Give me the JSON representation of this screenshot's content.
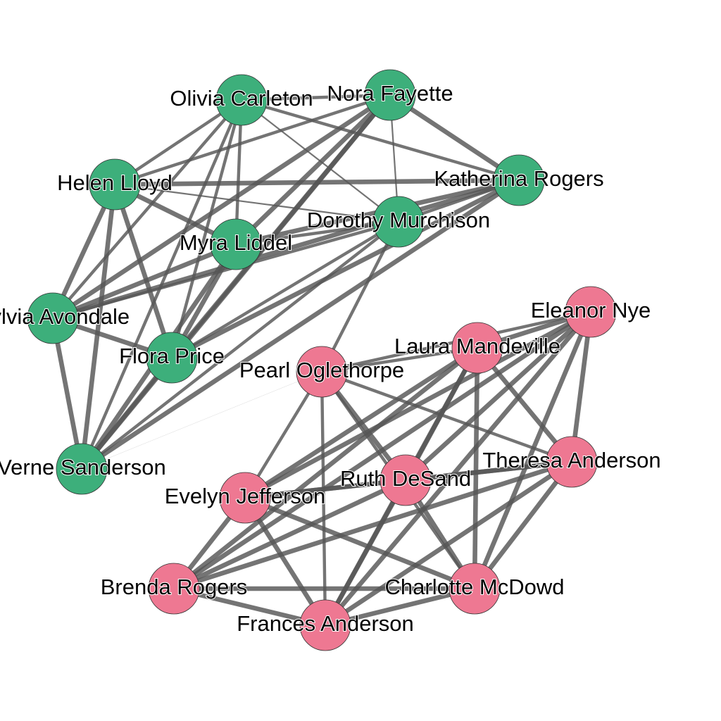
{
  "graph": {
    "type": "network",
    "edge_color": "#555555",
    "groups": {
      "green": "#3daf7b",
      "pink": "#ee7892"
    },
    "nodes": [
      {
        "id": "olivia_carleton",
        "label": "Olivia Carleton",
        "group": "green"
      },
      {
        "id": "nora_fayette",
        "label": "Nora Fayette",
        "group": "green"
      },
      {
        "id": "katherina_rogers",
        "label": "Katherina Rogers",
        "group": "green"
      },
      {
        "id": "helen_lloyd",
        "label": "Helen Lloyd",
        "group": "green"
      },
      {
        "id": "dorothy_murchison",
        "label": "Dorothy Murchison",
        "group": "green"
      },
      {
        "id": "myra_liddel",
        "label": "Myra Liddel",
        "group": "green"
      },
      {
        "id": "sylvia_avondale",
        "label": "Sylvia Avondale",
        "group": "green"
      },
      {
        "id": "flora_price",
        "label": "Flora Price",
        "group": "green"
      },
      {
        "id": "verne_sanderson",
        "label": "Verne Sanderson",
        "group": "green"
      },
      {
        "id": "eleanor_nye",
        "label": "Eleanor Nye",
        "group": "pink"
      },
      {
        "id": "laura_mandeville",
        "label": "Laura Mandeville",
        "group": "pink"
      },
      {
        "id": "pearl_oglethorpe",
        "label": "Pearl Oglethorpe",
        "group": "pink"
      },
      {
        "id": "theresa_anderson",
        "label": "Theresa Anderson",
        "group": "pink"
      },
      {
        "id": "ruth_desand",
        "label": "Ruth DeSand",
        "group": "pink"
      },
      {
        "id": "evelyn_jefferson",
        "label": "Evelyn Jefferson",
        "group": "pink"
      },
      {
        "id": "brenda_rogers",
        "label": "Brenda Rogers",
        "group": "pink"
      },
      {
        "id": "charlotte_mcdowd",
        "label": "Charlotte McDowd",
        "group": "pink"
      },
      {
        "id": "frances_anderson",
        "label": "Frances Anderson",
        "group": "pink"
      }
    ],
    "edges": [
      {
        "source": "olivia_carleton",
        "target": "nora_fayette",
        "weight": 2
      },
      {
        "source": "olivia_carleton",
        "target": "katherina_rogers",
        "weight": 2
      },
      {
        "source": "olivia_carleton",
        "target": "dorothy_murchison",
        "weight": 1
      },
      {
        "source": "olivia_carleton",
        "target": "helen_lloyd",
        "weight": 2
      },
      {
        "source": "olivia_carleton",
        "target": "myra_liddel",
        "weight": 2
      },
      {
        "source": "olivia_carleton",
        "target": "sylvia_avondale",
        "weight": 2
      },
      {
        "source": "olivia_carleton",
        "target": "flora_price",
        "weight": 2
      },
      {
        "source": "olivia_carleton",
        "target": "verne_sanderson",
        "weight": 2
      },
      {
        "source": "nora_fayette",
        "target": "katherina_rogers",
        "weight": 3
      },
      {
        "source": "nora_fayette",
        "target": "dorothy_murchison",
        "weight": 1
      },
      {
        "source": "nora_fayette",
        "target": "helen_lloyd",
        "weight": 2
      },
      {
        "source": "nora_fayette",
        "target": "myra_liddel",
        "weight": 3
      },
      {
        "source": "nora_fayette",
        "target": "sylvia_avondale",
        "weight": 3
      },
      {
        "source": "nora_fayette",
        "target": "flora_price",
        "weight": 3
      },
      {
        "source": "nora_fayette",
        "target": "verne_sanderson",
        "weight": 3
      },
      {
        "source": "katherina_rogers",
        "target": "helen_lloyd",
        "weight": 3
      },
      {
        "source": "katherina_rogers",
        "target": "dorothy_murchison",
        "weight": 2
      },
      {
        "source": "katherina_rogers",
        "target": "myra_liddel",
        "weight": 3
      },
      {
        "source": "katherina_rogers",
        "target": "sylvia_avondale",
        "weight": 3
      },
      {
        "source": "katherina_rogers",
        "target": "flora_price",
        "weight": 3
      },
      {
        "source": "katherina_rogers",
        "target": "verne_sanderson",
        "weight": 3
      },
      {
        "source": "helen_lloyd",
        "target": "dorothy_murchison",
        "weight": 1
      },
      {
        "source": "helen_lloyd",
        "target": "myra_liddel",
        "weight": 3
      },
      {
        "source": "helen_lloyd",
        "target": "sylvia_avondale",
        "weight": 3
      },
      {
        "source": "helen_lloyd",
        "target": "flora_price",
        "weight": 3
      },
      {
        "source": "helen_lloyd",
        "target": "verne_sanderson",
        "weight": 3
      },
      {
        "source": "dorothy_murchison",
        "target": "myra_liddel",
        "weight": 2
      },
      {
        "source": "dorothy_murchison",
        "target": "sylvia_avondale",
        "weight": 2
      },
      {
        "source": "dorothy_murchison",
        "target": "flora_price",
        "weight": 2
      },
      {
        "source": "dorothy_murchison",
        "target": "verne_sanderson",
        "weight": 2
      },
      {
        "source": "dorothy_murchison",
        "target": "pearl_oglethorpe",
        "weight": 2
      },
      {
        "source": "myra_liddel",
        "target": "sylvia_avondale",
        "weight": 3
      },
      {
        "source": "myra_liddel",
        "target": "flora_price",
        "weight": 3
      },
      {
        "source": "myra_liddel",
        "target": "verne_sanderson",
        "weight": 3
      },
      {
        "source": "sylvia_avondale",
        "target": "flora_price",
        "weight": 3
      },
      {
        "source": "sylvia_avondale",
        "target": "verne_sanderson",
        "weight": 3
      },
      {
        "source": "flora_price",
        "target": "verne_sanderson",
        "weight": 3
      },
      {
        "source": "verne_sanderson",
        "target": "pearl_oglethorpe",
        "weight": 0.2
      },
      {
        "source": "eleanor_nye",
        "target": "laura_mandeville",
        "weight": 3
      },
      {
        "source": "eleanor_nye",
        "target": "pearl_oglethorpe",
        "weight": 2
      },
      {
        "source": "eleanor_nye",
        "target": "theresa_anderson",
        "weight": 3
      },
      {
        "source": "eleanor_nye",
        "target": "ruth_desand",
        "weight": 3
      },
      {
        "source": "eleanor_nye",
        "target": "evelyn_jefferson",
        "weight": 3
      },
      {
        "source": "eleanor_nye",
        "target": "brenda_rogers",
        "weight": 3
      },
      {
        "source": "eleanor_nye",
        "target": "frances_anderson",
        "weight": 3
      },
      {
        "source": "eleanor_nye",
        "target": "charlotte_mcdowd",
        "weight": 3
      },
      {
        "source": "laura_mandeville",
        "target": "pearl_oglethorpe",
        "weight": 2
      },
      {
        "source": "laura_mandeville",
        "target": "theresa_anderson",
        "weight": 3
      },
      {
        "source": "laura_mandeville",
        "target": "ruth_desand",
        "weight": 3
      },
      {
        "source": "laura_mandeville",
        "target": "evelyn_jefferson",
        "weight": 3
      },
      {
        "source": "laura_mandeville",
        "target": "brenda_rogers",
        "weight": 3
      },
      {
        "source": "laura_mandeville",
        "target": "frances_anderson",
        "weight": 3
      },
      {
        "source": "laura_mandeville",
        "target": "charlotte_mcdowd",
        "weight": 3
      },
      {
        "source": "pearl_oglethorpe",
        "target": "theresa_anderson",
        "weight": 2
      },
      {
        "source": "pearl_oglethorpe",
        "target": "ruth_desand",
        "weight": 3
      },
      {
        "source": "pearl_oglethorpe",
        "target": "evelyn_jefferson",
        "weight": 2
      },
      {
        "source": "pearl_oglethorpe",
        "target": "frances_anderson",
        "weight": 2
      },
      {
        "source": "pearl_oglethorpe",
        "target": "charlotte_mcdowd",
        "weight": 2
      },
      {
        "source": "theresa_anderson",
        "target": "ruth_desand",
        "weight": 3
      },
      {
        "source": "theresa_anderson",
        "target": "evelyn_jefferson",
        "weight": 3
      },
      {
        "source": "theresa_anderson",
        "target": "brenda_rogers",
        "weight": 3
      },
      {
        "source": "theresa_anderson",
        "target": "frances_anderson",
        "weight": 3
      },
      {
        "source": "theresa_anderson",
        "target": "charlotte_mcdowd",
        "weight": 3
      },
      {
        "source": "ruth_desand",
        "target": "evelyn_jefferson",
        "weight": 3
      },
      {
        "source": "ruth_desand",
        "target": "brenda_rogers",
        "weight": 3
      },
      {
        "source": "ruth_desand",
        "target": "frances_anderson",
        "weight": 3
      },
      {
        "source": "ruth_desand",
        "target": "charlotte_mcdowd",
        "weight": 3
      },
      {
        "source": "evelyn_jefferson",
        "target": "brenda_rogers",
        "weight": 3
      },
      {
        "source": "evelyn_jefferson",
        "target": "frances_anderson",
        "weight": 3
      },
      {
        "source": "evelyn_jefferson",
        "target": "charlotte_mcdowd",
        "weight": 3
      },
      {
        "source": "brenda_rogers",
        "target": "frances_anderson",
        "weight": 3
      },
      {
        "source": "brenda_rogers",
        "target": "charlotte_mcdowd",
        "weight": 3
      },
      {
        "source": "frances_anderson",
        "target": "charlotte_mcdowd",
        "weight": 3
      }
    ]
  }
}
